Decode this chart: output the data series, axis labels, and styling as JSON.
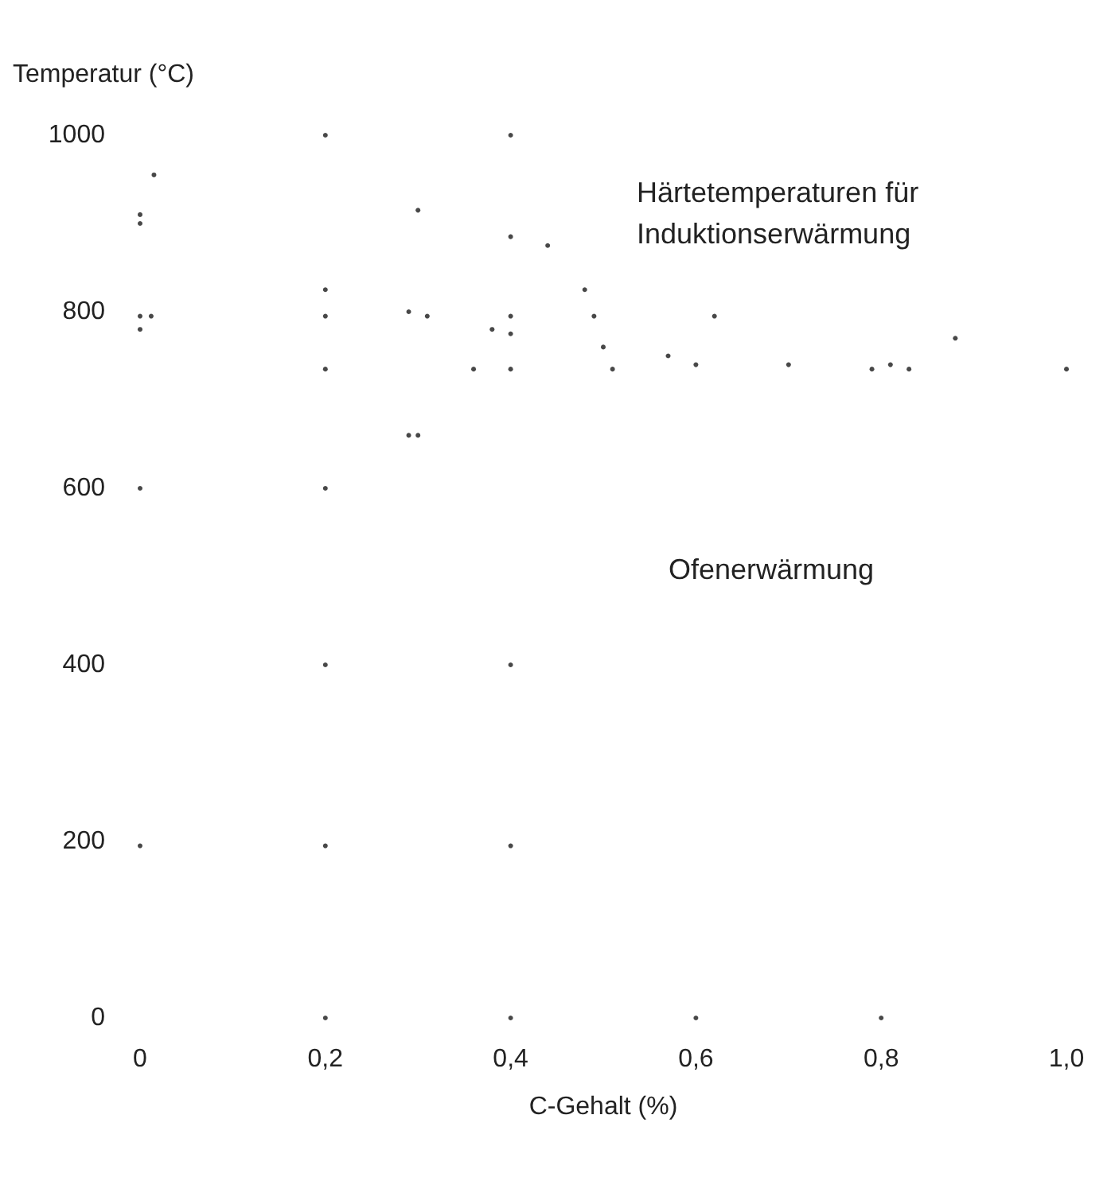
{
  "chart_data": {
    "type": "scatter",
    "xlabel": "C-Gehalt (%)",
    "ylabel": "Temperatur (°C)",
    "annotations": [
      "Härtetemperaturen für\nInduktionserwärmung",
      "Ofenerwärmung"
    ],
    "x": [
      0.015,
      0,
      0,
      0,
      0.012,
      0,
      0,
      0,
      0.2,
      0.2,
      0.2,
      0.2,
      0.2,
      0.2,
      0.2,
      0.2,
      0.29,
      0.3,
      0.31,
      0.29,
      0.3,
      0.36,
      0.38,
      0.4,
      0.4,
      0.4,
      0.4,
      0.4,
      0.4,
      0.4,
      0.4,
      0.44,
      0.48,
      0.49,
      0.5,
      0.51,
      0.57,
      0.6,
      0.6,
      0.62,
      0.7,
      0.79,
      0.81,
      0.83,
      0.8,
      0.88,
      1.0
    ],
    "values": [
      955,
      910,
      900,
      795,
      795,
      780,
      600,
      195,
      1000,
      825,
      795,
      735,
      600,
      400,
      195,
      0,
      800,
      915,
      795,
      660,
      660,
      735,
      780,
      1000,
      885,
      795,
      775,
      735,
      400,
      195,
      0,
      875,
      825,
      795,
      760,
      735,
      750,
      740,
      0,
      795,
      740,
      735,
      740,
      735,
      0,
      770,
      735
    ],
    "color": "#1a1a1a",
    "marker": "circle",
    "grid": false,
    "xlim": [
      0,
      1.0
    ],
    "xticks": [
      {
        "value": 0,
        "label": "0"
      },
      {
        "value": 0.2,
        "label": "0,2"
      },
      {
        "value": 0.4,
        "label": "0,4"
      },
      {
        "value": 0.6,
        "label": "0,6"
      },
      {
        "value": 0.8,
        "label": "0,8"
      },
      {
        "value": 1.0,
        "label": "1,0"
      }
    ],
    "ylim": [
      0,
      1000
    ],
    "yticks": [
      0,
      200,
      400,
      600,
      800,
      1000
    ]
  }
}
